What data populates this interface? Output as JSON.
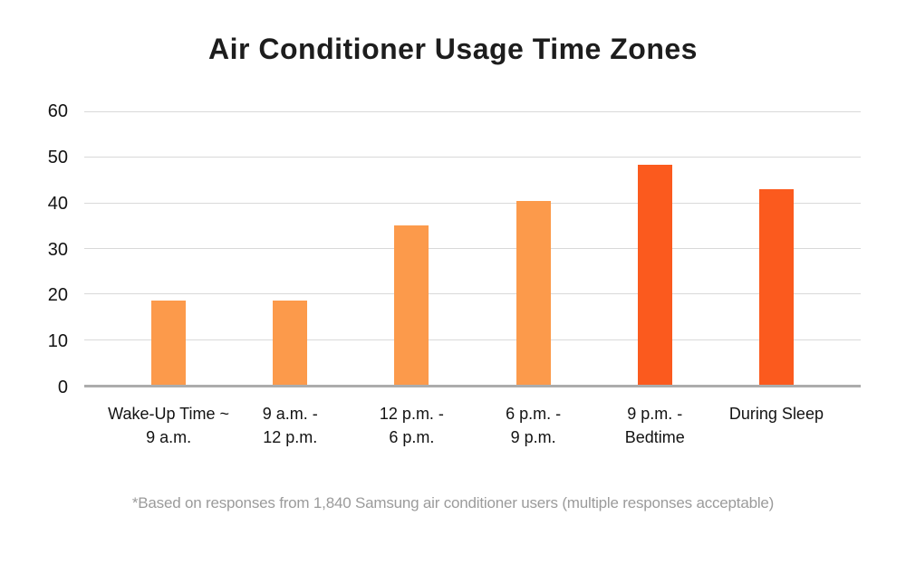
{
  "chart_data": {
    "type": "bar",
    "title": "Air Conditioner Usage Time Zones",
    "footnote": "*Based on responses from 1,840 Samsung air conditioner users (multiple responses acceptable)",
    "categories": [
      "Wake-Up Time ~ 9 a.m.",
      "9 a.m. - 12 p.m.",
      "12 p.m. - 6 p.m.",
      "6 p.m. - 9 p.m.",
      "9 p.m. - Bedtime",
      "During Sleep"
    ],
    "category_lines": [
      [
        "Wake-Up Time ~",
        "9 a.m."
      ],
      [
        "9 a.m. -",
        "12 p.m."
      ],
      [
        "12 p.m. -",
        "6 p.m."
      ],
      [
        "6 p.m. -",
        "9 p.m."
      ],
      [
        "9 p.m. -",
        "Bedtime"
      ],
      [
        "During Sleep"
      ]
    ],
    "values": [
      18.5,
      18.5,
      35,
      40.3,
      48.3,
      43
    ],
    "bar_colors": [
      "#FC9A4B",
      "#FC9A4B",
      "#FC9A4B",
      "#FC9A4B",
      "#FB5A1E",
      "#FB5A1E"
    ],
    "yticks": [
      0,
      10,
      20,
      30,
      40,
      50,
      60
    ],
    "ylim": [
      0,
      60
    ],
    "xlabel": "",
    "ylabel": "",
    "grid": "horizontal",
    "legend": "none",
    "colors": {
      "light_orange": "#FC9A4B",
      "dark_orange": "#FB5A1E",
      "gridline": "#D9D9D9",
      "axis_line": "#ACACAC",
      "title_text": "#1D1D1D",
      "axis_text": "#131313",
      "footnote_text": "#9B9B9B",
      "background": "#FFFFFF"
    }
  }
}
